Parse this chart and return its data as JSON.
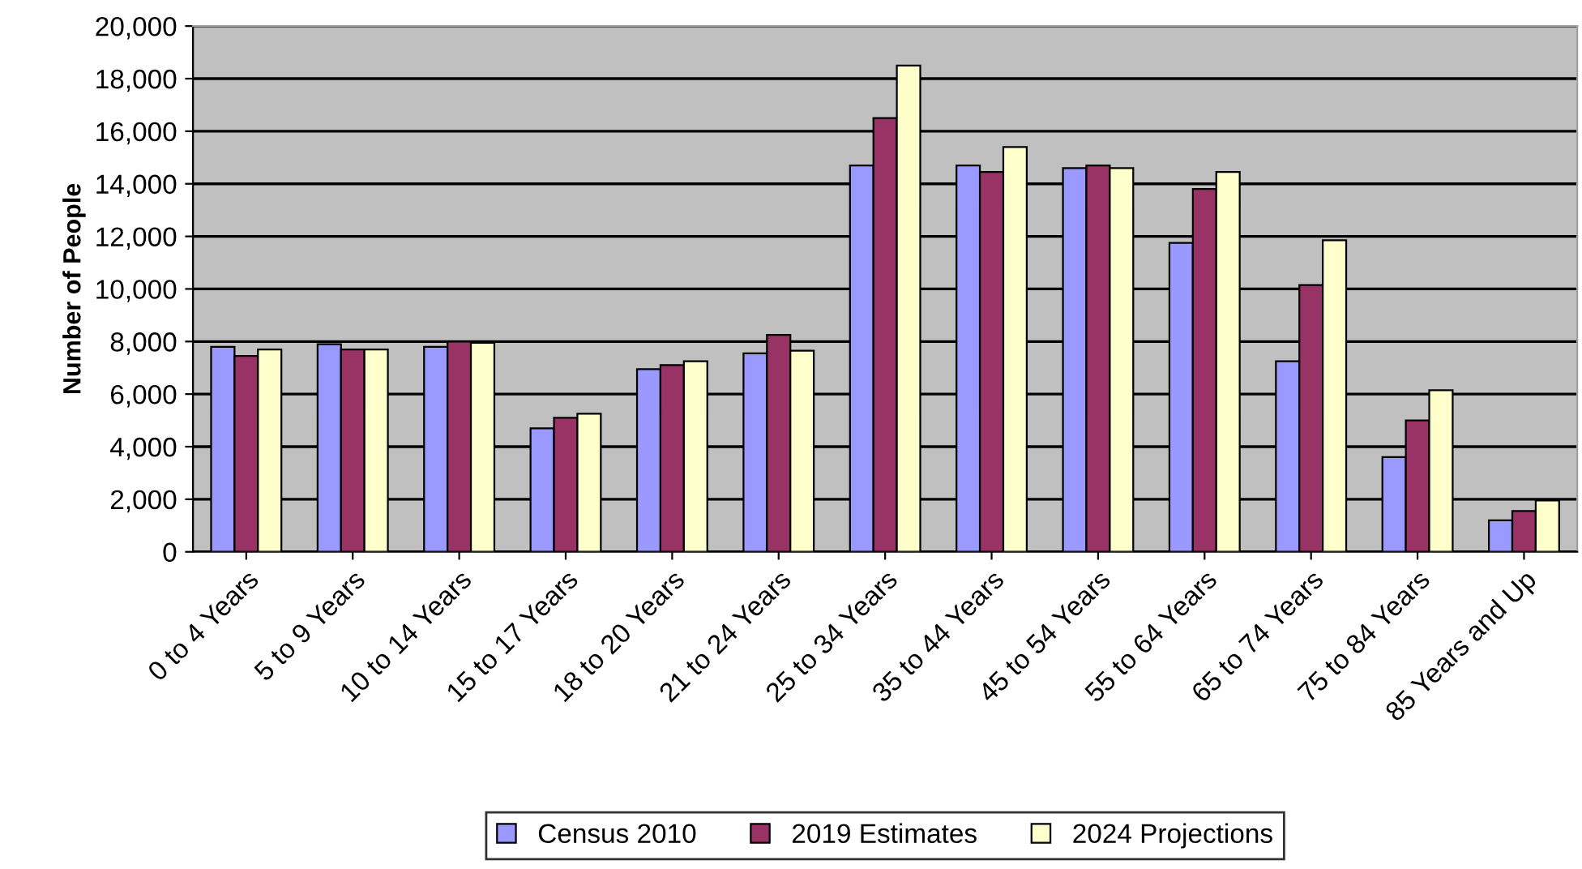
{
  "chart_data": {
    "type": "bar",
    "ylabel": "Number of People",
    "categories": [
      "0 to 4 Years",
      "5 to 9 Years",
      "10 to 14 Years",
      "15 to 17 Years",
      "18 to 20 Years",
      "21 to 24 Years",
      "25 to 34 Years",
      "35 to 44 Years",
      "45 to 54 Years",
      "55 to 64 Years",
      "65 to 74 Years",
      "75 to 84 Years",
      "85 Years and Up"
    ],
    "series": [
      {
        "name": "Census 2010",
        "color": "#9999ff",
        "values": [
          7800,
          7900,
          7800,
          4700,
          6950,
          7550,
          14700,
          14700,
          14600,
          11750,
          7250,
          3600,
          1200
        ]
      },
      {
        "name": "2019 Estimates",
        "color": "#993366",
        "values": [
          7450,
          7700,
          8000,
          5100,
          7100,
          8250,
          16500,
          14450,
          14700,
          13800,
          10150,
          5000,
          1550
        ]
      },
      {
        "name": "2024 Projections",
        "color": "#ffffcc",
        "values": [
          7700,
          7700,
          7950,
          5250,
          7250,
          7650,
          18500,
          15400,
          14600,
          14450,
          11850,
          6150,
          1950
        ]
      }
    ],
    "ylim": [
      0,
      20000
    ],
    "yticks": [
      {
        "value": 0,
        "label": "0"
      },
      {
        "value": 2000,
        "label": "2,000"
      },
      {
        "value": 4000,
        "label": "4,000"
      },
      {
        "value": 6000,
        "label": "6,000"
      },
      {
        "value": 8000,
        "label": "8,000"
      },
      {
        "value": 10000,
        "label": "10,000"
      },
      {
        "value": 12000,
        "label": "12,000"
      },
      {
        "value": 14000,
        "label": "14,000"
      },
      {
        "value": 16000,
        "label": "16,000"
      },
      {
        "value": 18000,
        "label": "18,000"
      },
      {
        "value": 20000,
        "label": "20,000"
      }
    ],
    "grid": "y",
    "legend": "bottom"
  }
}
